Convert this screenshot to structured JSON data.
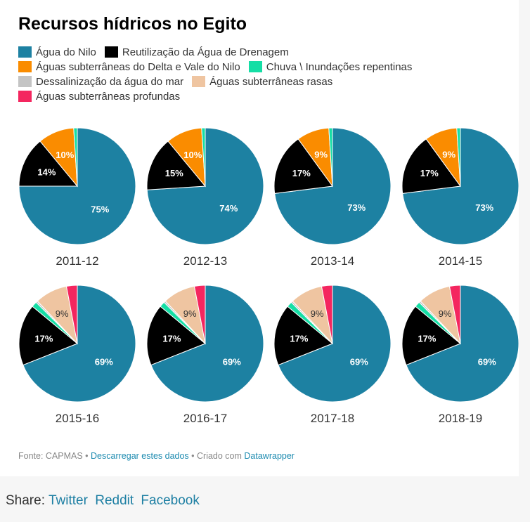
{
  "chart_data": {
    "type": "pie",
    "title": "Recursos hídricos no Egito",
    "legend": [
      "Água do Nilo",
      "Reutilização da Água de Drenagem",
      "Águas subterrâneas do Delta e Vale do Nilo",
      "Chuva \\ Inundações repentinas",
      "Dessalinização da água do mar",
      "Águas subterrâneas rasas",
      "Águas subterrâneas profundas"
    ],
    "colors": [
      "#1d81a2",
      "#000000",
      "#fa8c00",
      "#15dea5",
      "#c4c4c4",
      "#efc5a1",
      "#f4265f"
    ],
    "charts": [
      {
        "label": "2011-12",
        "values": [
          75,
          14,
          10,
          1,
          0,
          0,
          0
        ]
      },
      {
        "label": "2012-13",
        "values": [
          74,
          15,
          10,
          1,
          0,
          0,
          0
        ]
      },
      {
        "label": "2013-14",
        "values": [
          73,
          17,
          9,
          1,
          0,
          0,
          0
        ]
      },
      {
        "label": "2014-15",
        "values": [
          73,
          17,
          9,
          1,
          0,
          0,
          0
        ]
      },
      {
        "label": "2015-16",
        "values": [
          69,
          17,
          0,
          1.5,
          0.5,
          9,
          3
        ]
      },
      {
        "label": "2016-17",
        "values": [
          69,
          17,
          0,
          1.5,
          0.5,
          9,
          3
        ]
      },
      {
        "label": "2017-18",
        "values": [
          69,
          17,
          0,
          1.5,
          0.5,
          9,
          3
        ]
      },
      {
        "label": "2018-19",
        "values": [
          69,
          17,
          0,
          1.5,
          0.5,
          9,
          3
        ]
      }
    ]
  },
  "footer": {
    "source": "Fonte: CAPMAS",
    "sep1": " • ",
    "download": "Descarregar estes dados",
    "sep2": " • Criado com ",
    "tool": "Datawrapper"
  },
  "share": {
    "label": "Share:",
    "links": [
      "Twitter",
      "Reddit",
      "Facebook"
    ]
  }
}
